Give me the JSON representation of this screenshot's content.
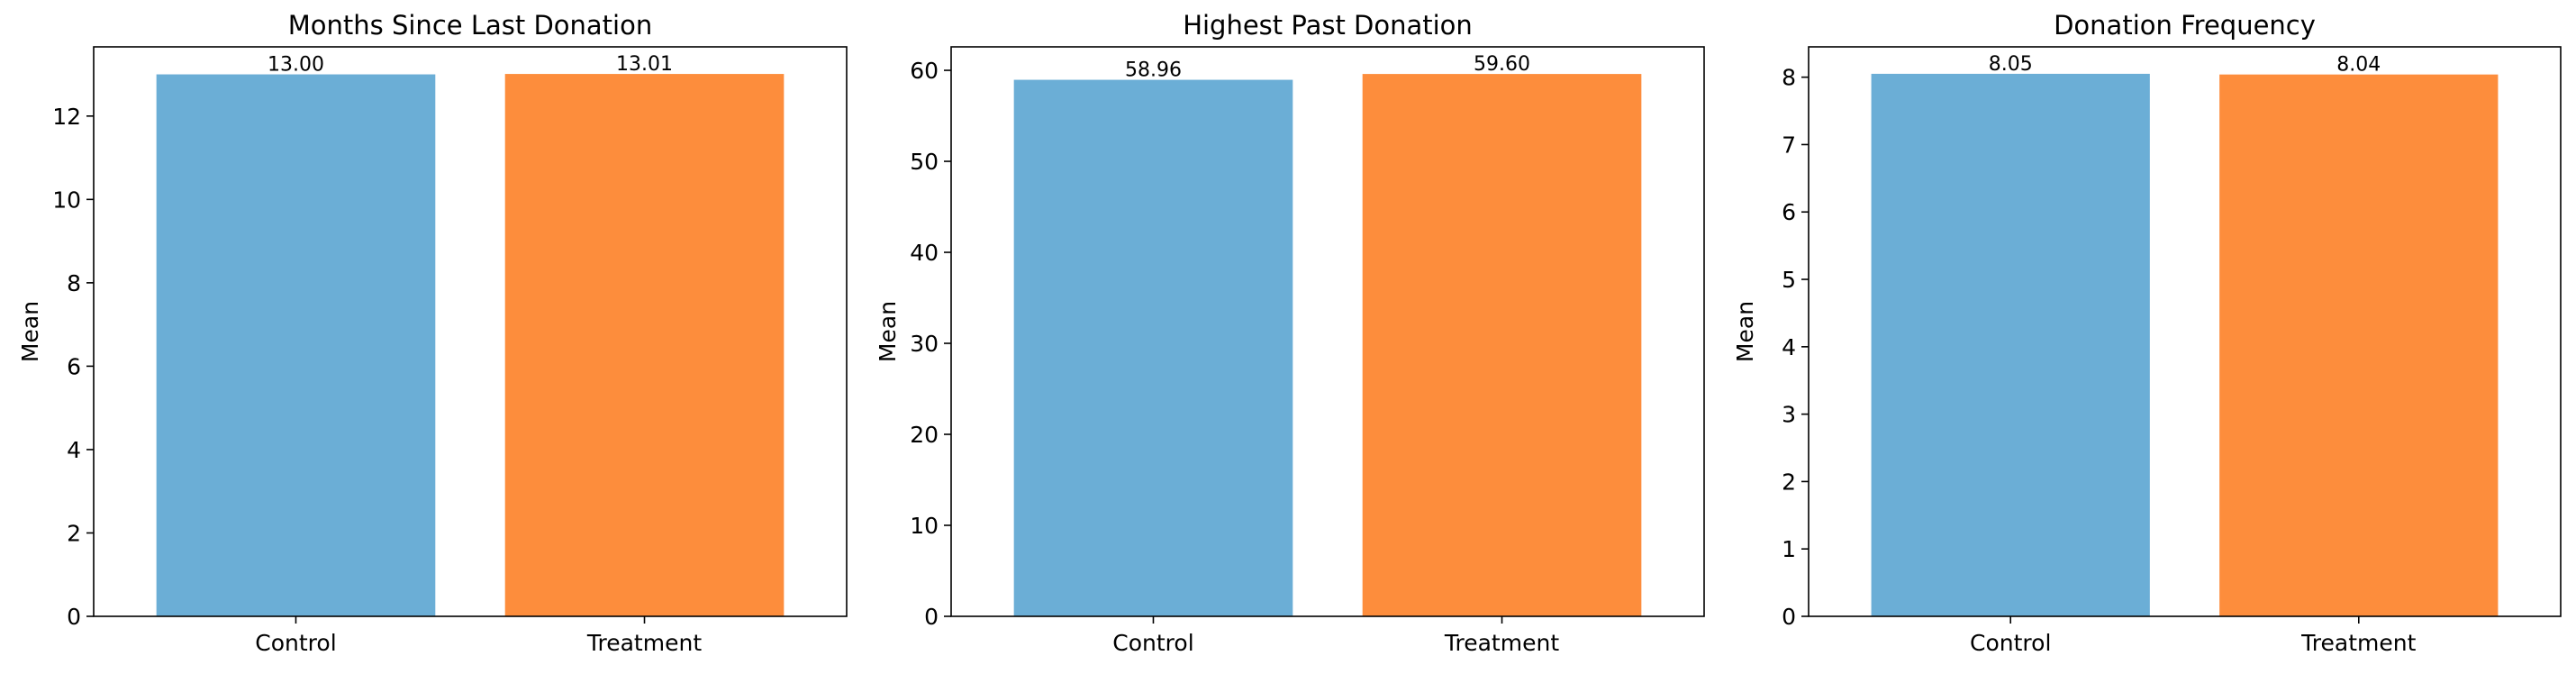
{
  "colors": {
    "control": "#6baed6",
    "treatment": "#fd8d3c"
  },
  "chart_data": [
    {
      "type": "bar",
      "title": "Months Since Last Donation",
      "ylabel": "Mean",
      "categories": [
        "Control",
        "Treatment"
      ],
      "values": [
        13.0,
        13.01
      ],
      "value_labels": [
        "13.00",
        "13.01"
      ],
      "ylim": [
        0,
        13.66
      ],
      "yticks": [
        0,
        2,
        4,
        6,
        8,
        10,
        12
      ],
      "ytick_labels": [
        "0",
        "2",
        "4",
        "6",
        "8",
        "10",
        "12"
      ],
      "grid": false
    },
    {
      "type": "bar",
      "title": "Highest Past Donation",
      "ylabel": "Mean",
      "categories": [
        "Control",
        "Treatment"
      ],
      "values": [
        58.96,
        59.6
      ],
      "value_labels": [
        "58.96",
        "59.60"
      ],
      "ylim": [
        0,
        62.58
      ],
      "yticks": [
        0,
        10,
        20,
        30,
        40,
        50,
        60
      ],
      "ytick_labels": [
        "0",
        "10",
        "20",
        "30",
        "40",
        "50",
        "60"
      ],
      "grid": false
    },
    {
      "type": "bar",
      "title": "Donation Frequency",
      "ylabel": "Mean",
      "categories": [
        "Control",
        "Treatment"
      ],
      "values": [
        8.05,
        8.04
      ],
      "value_labels": [
        "8.05",
        "8.04"
      ],
      "ylim": [
        0,
        8.45
      ],
      "yticks": [
        0,
        1,
        2,
        3,
        4,
        5,
        6,
        7,
        8
      ],
      "ytick_labels": [
        "0",
        "1",
        "2",
        "3",
        "4",
        "5",
        "6",
        "7",
        "8"
      ],
      "grid": false
    }
  ]
}
